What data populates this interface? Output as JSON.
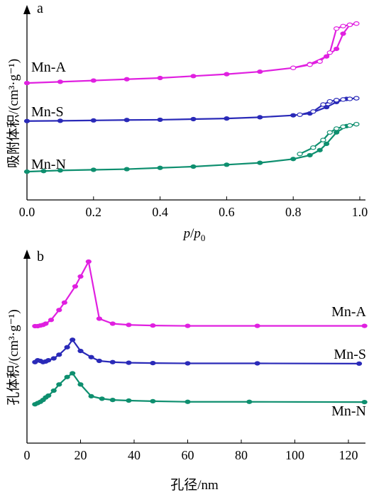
{
  "chart_data": [
    {
      "panel": "a",
      "type": "line",
      "xlabel_italic": "p",
      "xlabel_slash": "/",
      "xlabel_sub_base": "p",
      "xlabel_sub": "0",
      "ylabel": "吸附体积/(cm³·g⁻¹)",
      "xlim": [
        0.0,
        1.0
      ],
      "x_ticks": [
        "0.0",
        "0.2",
        "0.4",
        "0.6",
        "0.8",
        "1.0"
      ],
      "y_ticks_labeled": false,
      "series": [
        {
          "name": "Mn-A",
          "color": "#e020e0",
          "adsorption": [
            [
              0.0,
              8.0
            ],
            [
              0.1,
              8.1
            ],
            [
              0.2,
              8.2
            ],
            [
              0.3,
              8.3
            ],
            [
              0.4,
              8.4
            ],
            [
              0.5,
              8.55
            ],
            [
              0.6,
              8.7
            ],
            [
              0.7,
              8.9
            ],
            [
              0.8,
              9.2
            ],
            [
              0.85,
              9.5
            ],
            [
              0.9,
              10.1
            ],
            [
              0.93,
              10.7
            ],
            [
              0.95,
              11.9
            ],
            [
              0.97,
              12.6
            ],
            [
              0.99,
              12.7
            ]
          ],
          "desorption": [
            [
              0.99,
              12.7
            ],
            [
              0.97,
              12.6
            ],
            [
              0.95,
              12.5
            ],
            [
              0.93,
              12.3
            ],
            [
              0.91,
              10.4
            ],
            [
              0.88,
              9.7
            ],
            [
              0.85,
              9.45
            ],
            [
              0.8,
              9.2
            ]
          ]
        },
        {
          "name": "Mn-S",
          "color": "#2a2ab8",
          "adsorption": [
            [
              0.0,
              5.0
            ],
            [
              0.1,
              5.02
            ],
            [
              0.2,
              5.05
            ],
            [
              0.3,
              5.08
            ],
            [
              0.4,
              5.1
            ],
            [
              0.5,
              5.15
            ],
            [
              0.6,
              5.2
            ],
            [
              0.7,
              5.3
            ],
            [
              0.8,
              5.45
            ],
            [
              0.85,
              5.6
            ],
            [
              0.9,
              6.1
            ],
            [
              0.93,
              6.5
            ],
            [
              0.96,
              6.75
            ],
            [
              0.99,
              6.8
            ]
          ],
          "desorption": [
            [
              0.99,
              6.8
            ],
            [
              0.97,
              6.75
            ],
            [
              0.95,
              6.7
            ],
            [
              0.93,
              6.65
            ],
            [
              0.91,
              6.55
            ],
            [
              0.89,
              6.3
            ],
            [
              0.86,
              5.75
            ],
            [
              0.82,
              5.5
            ]
          ]
        },
        {
          "name": "Mn-N",
          "color": "#0e8f6f",
          "adsorption": [
            [
              0.0,
              1.0
            ],
            [
              0.05,
              1.05
            ],
            [
              0.1,
              1.1
            ],
            [
              0.2,
              1.15
            ],
            [
              0.3,
              1.2
            ],
            [
              0.4,
              1.3
            ],
            [
              0.5,
              1.4
            ],
            [
              0.6,
              1.55
            ],
            [
              0.7,
              1.7
            ],
            [
              0.8,
              2.0
            ],
            [
              0.85,
              2.3
            ],
            [
              0.88,
              2.7
            ],
            [
              0.9,
              3.2
            ],
            [
              0.93,
              4.1
            ],
            [
              0.96,
              4.6
            ],
            [
              0.99,
              4.75
            ]
          ],
          "desorption": [
            [
              0.99,
              4.75
            ],
            [
              0.97,
              4.65
            ],
            [
              0.95,
              4.55
            ],
            [
              0.93,
              4.4
            ],
            [
              0.91,
              4.1
            ],
            [
              0.89,
              3.5
            ],
            [
              0.86,
              2.9
            ],
            [
              0.82,
              2.4
            ]
          ]
        }
      ]
    },
    {
      "panel": "b",
      "type": "line",
      "xlabel": "孔径/nm",
      "ylabel": "孔体积/(cm³·g⁻¹)",
      "xlim": [
        0,
        126
      ],
      "x_ticks": [
        "0",
        "20",
        "40",
        "60",
        "80",
        "100",
        "120"
      ],
      "y_ticks_labeled": false,
      "series": [
        {
          "name": "Mn-A",
          "color": "#e020e0",
          "points": [
            [
              3,
              8.0
            ],
            [
              4,
              8.0
            ],
            [
              5,
              8.05
            ],
            [
              6,
              8.1
            ],
            [
              7,
              8.2
            ],
            [
              9,
              8.5
            ],
            [
              12,
              9.3
            ],
            [
              14,
              9.9
            ],
            [
              18,
              11.2
            ],
            [
              20,
              12.0
            ],
            [
              23,
              13.2
            ],
            [
              27,
              8.6
            ],
            [
              32,
              8.2
            ],
            [
              38,
              8.1
            ],
            [
              47,
              8.05
            ],
            [
              60,
              8.02
            ],
            [
              86,
              8.02
            ],
            [
              126,
              8.02
            ]
          ]
        },
        {
          "name": "Mn-S",
          "color": "#2a2ab8",
          "points": [
            [
              3,
              5.1
            ],
            [
              4,
              5.25
            ],
            [
              5,
              5.2
            ],
            [
              6,
              5.1
            ],
            [
              7,
              5.15
            ],
            [
              8,
              5.25
            ],
            [
              10,
              5.4
            ],
            [
              12,
              5.7
            ],
            [
              15,
              6.3
            ],
            [
              17,
              6.9
            ],
            [
              20,
              6.0
            ],
            [
              24,
              5.5
            ],
            [
              27,
              5.2
            ],
            [
              32,
              5.1
            ],
            [
              38,
              5.05
            ],
            [
              47,
              5.02
            ],
            [
              60,
              5.0
            ],
            [
              86,
              5.0
            ],
            [
              124,
              4.98
            ]
          ]
        },
        {
          "name": "Mn-N",
          "color": "#0e8f6f",
          "points": [
            [
              3,
              1.7
            ],
            [
              4,
              1.8
            ],
            [
              5,
              1.9
            ],
            [
              6,
              2.05
            ],
            [
              7,
              2.25
            ],
            [
              8,
              2.4
            ],
            [
              10,
              2.8
            ],
            [
              12,
              3.3
            ],
            [
              15,
              3.9
            ],
            [
              17,
              4.2
            ],
            [
              20,
              3.3
            ],
            [
              24,
              2.35
            ],
            [
              28,
              2.15
            ],
            [
              32,
              2.05
            ],
            [
              38,
              2.0
            ],
            [
              47,
              1.95
            ],
            [
              60,
              1.9
            ],
            [
              83,
              1.9
            ],
            [
              126,
              1.88
            ]
          ]
        }
      ]
    }
  ],
  "panel_a": {
    "panel_label": "a",
    "series_labels": [
      "Mn-A",
      "Mn-S",
      "Mn-N"
    ]
  },
  "panel_b": {
    "panel_label": "b",
    "series_labels": [
      "Mn-A",
      "Mn-S",
      "Mn-N"
    ]
  }
}
